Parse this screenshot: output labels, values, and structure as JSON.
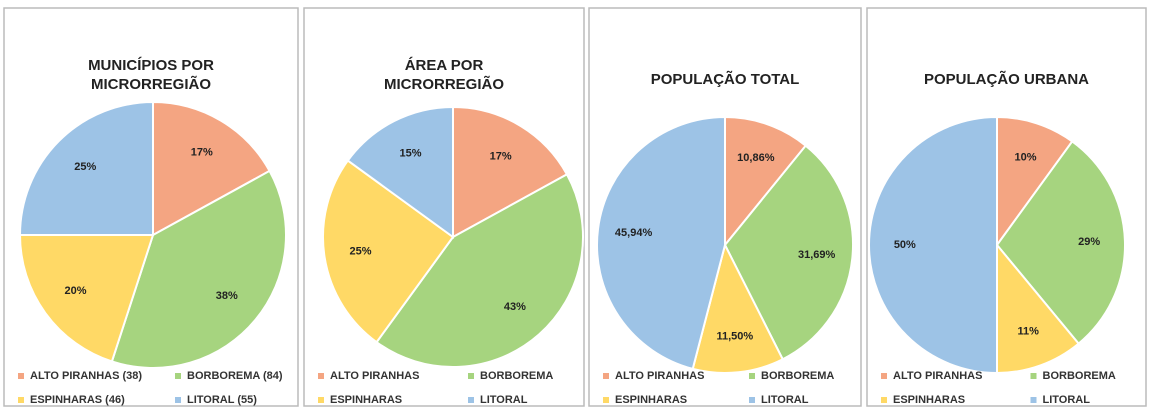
{
  "chart_data": [
    {
      "type": "pie",
      "title": [
        "MUNICÍPIOS POR",
        "MICRORREGIÃO"
      ],
      "categories": [
        "ALTO PIRANHAS (38)",
        "BORBOREMA (84)",
        "ESPINHARAS (46)",
        "LITORAL (55)"
      ],
      "values": [
        17,
        38,
        20,
        25
      ],
      "value_labels": [
        "17%",
        "38%",
        "20%",
        "25%"
      ],
      "colors": [
        "#f4a582",
        "#a6d47f",
        "#ffd966",
        "#9dc3e6"
      ]
    },
    {
      "type": "pie",
      "title": [
        "ÁREA POR",
        "MICRORREGIÃO"
      ],
      "categories": [
        "ALTO PIRANHAS",
        "BORBOREMA",
        "ESPINHARAS",
        "LITORAL"
      ],
      "values": [
        17,
        43,
        25,
        15
      ],
      "value_labels": [
        "17%",
        "43%",
        "25%",
        "15%"
      ],
      "colors": [
        "#f4a582",
        "#a6d47f",
        "#ffd966",
        "#9dc3e6"
      ]
    },
    {
      "type": "pie",
      "title": [
        "POPULAÇÃO  TOTAL"
      ],
      "categories": [
        "ALTO PIRANHAS",
        "BORBOREMA",
        "ESPINHARAS",
        "LITORAL"
      ],
      "values": [
        10.86,
        31.69,
        11.5,
        45.94
      ],
      "value_labels": [
        "10,86%",
        "31,69%",
        "11,50%",
        "45,94%"
      ],
      "colors": [
        "#f4a582",
        "#a6d47f",
        "#ffd966",
        "#9dc3e6"
      ]
    },
    {
      "type": "pie",
      "title": [
        "POPULAÇÃO  URBANA"
      ],
      "categories": [
        "ALTO PIRANHAS",
        "BORBOREMA",
        "ESPINHARAS",
        "LITORAL"
      ],
      "values": [
        10,
        29,
        11,
        50
      ],
      "value_labels": [
        "10%",
        "29%",
        "11%",
        "50%"
      ],
      "colors": [
        "#f4a582",
        "#a6d47f",
        "#ffd966",
        "#9dc3e6"
      ]
    }
  ]
}
